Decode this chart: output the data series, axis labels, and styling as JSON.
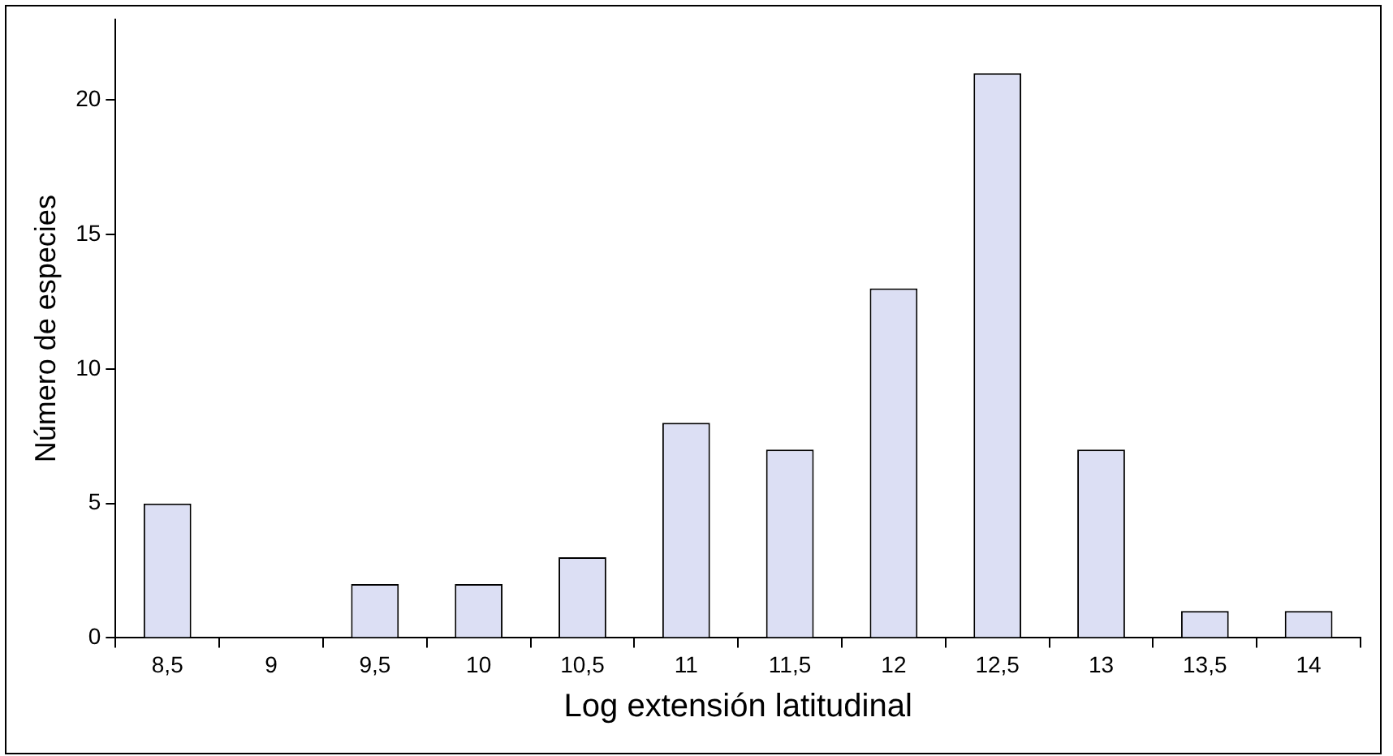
{
  "chart_data": {
    "type": "bar",
    "xlabel": "Log extensión latitudinal",
    "ylabel": "Número de especies",
    "categories": [
      "8,5",
      "9",
      "9,5",
      "10",
      "10,5",
      "11",
      "11,5",
      "12",
      "12,5",
      "13",
      "13,5",
      "14"
    ],
    "values": [
      5,
      0,
      2,
      2,
      3,
      8,
      7,
      13,
      21,
      7,
      1,
      1
    ],
    "color": "#dcdff4",
    "ylim": [
      0,
      23
    ],
    "yticks": [
      0,
      5,
      10,
      15,
      20
    ],
    "grid": false,
    "legend": false
  }
}
